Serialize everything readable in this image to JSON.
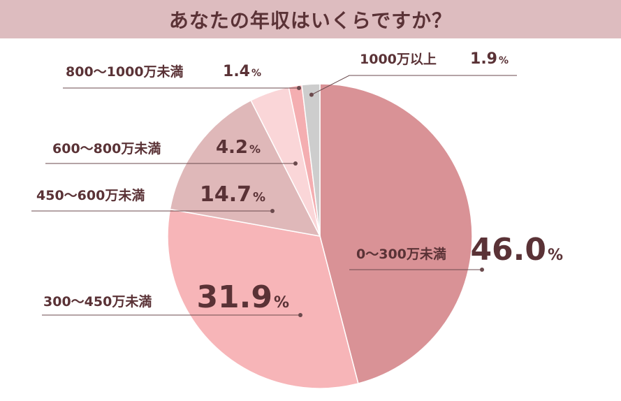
{
  "title": "あなたの年収はいくらですか？",
  "chart_data": {
    "type": "pie",
    "unit": "%",
    "slices": [
      {
        "label": "0～300万未満",
        "value": 46.0,
        "value_text": "46.0",
        "color": "#d99296"
      },
      {
        "label": "300～450万未満",
        "value": 31.9,
        "value_text": "31.9",
        "color": "#f7b5b8"
      },
      {
        "label": "450～600万未満",
        "value": 14.7,
        "value_text": "14.7",
        "color": "#dfb8b9"
      },
      {
        "label": "600～800万未満",
        "value": 4.2,
        "value_text": "4.2",
        "color": "#fad6d8"
      },
      {
        "label": "800～1000万未満",
        "value": 1.4,
        "value_text": "1.4",
        "color": "#f4aeb1"
      },
      {
        "label": "1000万以上",
        "value": 1.9,
        "value_text": "1.9",
        "color": "#cdcdcd"
      }
    ]
  }
}
